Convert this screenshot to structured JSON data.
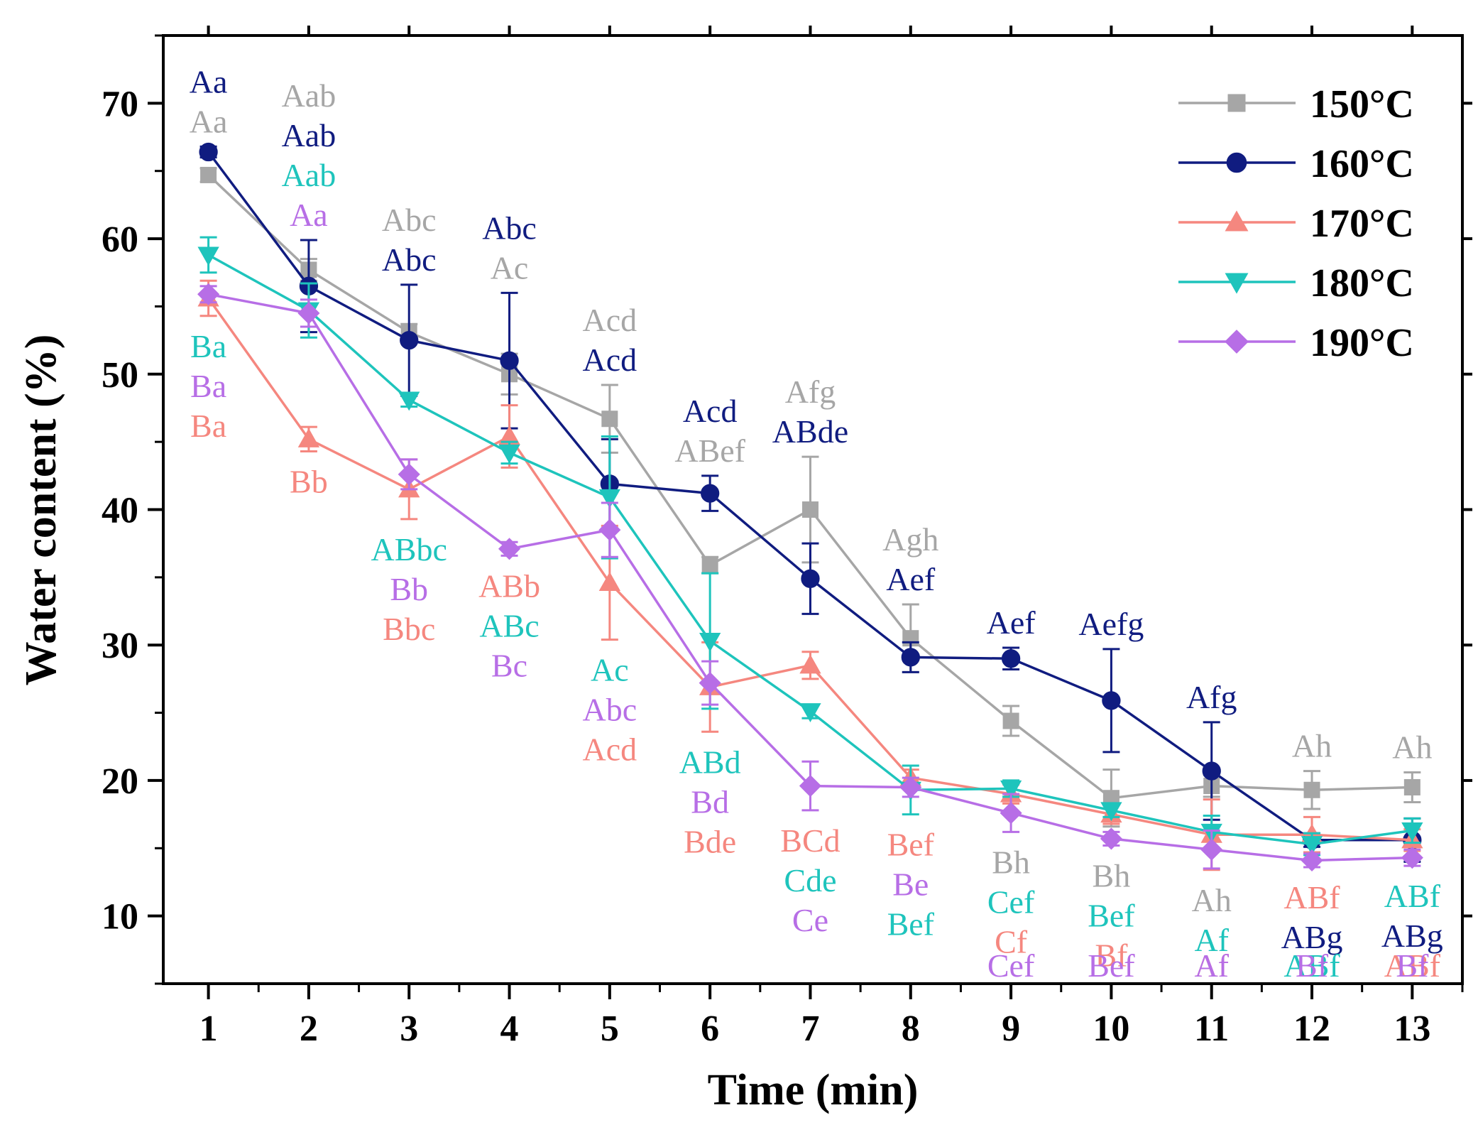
{
  "chart_data": {
    "type": "line",
    "title": "",
    "xlabel": "Time (min)",
    "ylabel": "Water content (%)",
    "xlim": [
      0.55,
      13.5
    ],
    "ylim": [
      5,
      75
    ],
    "x": [
      1,
      2,
      3,
      4,
      5,
      6,
      7,
      8,
      9,
      10,
      11,
      12,
      13
    ],
    "y_ticks": [
      10,
      20,
      30,
      40,
      50,
      60,
      70
    ],
    "legend_position": "top-right",
    "series": [
      {
        "name": "150°C",
        "color": "#a6a6a6",
        "marker": "square",
        "values": [
          64.7,
          57.7,
          53.1,
          50.0,
          46.7,
          35.9,
          40.0,
          30.5,
          24.4,
          18.7,
          19.6,
          19.3,
          19.5
        ],
        "errors": [
          0.5,
          0.8,
          0.6,
          1.5,
          2.5,
          0.6,
          3.9,
          2.5,
          1.1,
          2.1,
          0.8,
          1.4,
          1.1
        ],
        "letters": [
          "Aa",
          "Aab",
          "Abc",
          "Ac",
          "Acd",
          "ABef",
          "Afg",
          "Agh",
          "Bh",
          "Bh",
          "Ah",
          "Ah",
          "Ah"
        ]
      },
      {
        "name": "160°C",
        "color": "#101c80",
        "marker": "circle",
        "values": [
          66.4,
          56.5,
          52.5,
          51.0,
          41.9,
          41.2,
          34.9,
          29.1,
          29.0,
          25.9,
          20.7,
          15.6,
          15.6
        ],
        "errors": [
          0.4,
          3.4,
          4.1,
          5.0,
          3.3,
          1.3,
          2.6,
          1.1,
          0.8,
          3.8,
          3.6,
          0.5,
          1.6
        ],
        "letters": [
          "Aa",
          "Aab",
          "Abc",
          "Abc",
          "Acd",
          "Acd",
          "ABde",
          "Aef",
          "Aef",
          "Aefg",
          "Afg",
          "ABg",
          "ABg"
        ]
      },
      {
        "name": "170°C",
        "color": "#f5877f",
        "marker": "triangle-up",
        "values": [
          55.6,
          45.2,
          41.5,
          45.4,
          34.6,
          26.9,
          28.5,
          20.2,
          19.0,
          17.5,
          16.0,
          16.0,
          15.6
        ],
        "errors": [
          1.3,
          0.9,
          2.2,
          2.3,
          4.2,
          3.3,
          1.0,
          0.6,
          0.7,
          0.7,
          2.6,
          1.3,
          0.8
        ],
        "letters": [
          "Ba",
          "Bb",
          "Bbc",
          "ABb",
          "Acd",
          "Bde",
          "BCd",
          "Bef",
          "Cf",
          "Bf",
          "Af",
          "ABf",
          "ABf"
        ]
      },
      {
        "name": "180°C",
        "color": "#1ec4bc",
        "marker": "triangle-down",
        "values": [
          58.8,
          54.7,
          48.1,
          44.2,
          40.9,
          30.3,
          25.1,
          19.3,
          19.4,
          17.8,
          16.2,
          15.3,
          16.3
        ],
        "errors": [
          1.3,
          2.0,
          0.5,
          0.8,
          4.5,
          5.0,
          0.5,
          1.8,
          0.6,
          0.5,
          1.2,
          0.8,
          0.9
        ],
        "letters": [
          "Ba",
          "Aab",
          "ABbc",
          "ABc",
          "Ac",
          "ABd",
          "Cde",
          "Bef",
          "Cef",
          "Bef",
          "Af",
          "ABf",
          "ABf"
        ]
      },
      {
        "name": "190°C",
        "color": "#b76ee6",
        "marker": "diamond",
        "values": [
          55.9,
          54.5,
          42.6,
          37.1,
          38.5,
          27.2,
          19.6,
          19.5,
          17.6,
          15.7,
          14.9,
          14.1,
          14.3
        ],
        "errors": [
          0.6,
          1.0,
          1.1,
          0.5,
          2.0,
          1.6,
          1.8,
          0.7,
          1.4,
          0.5,
          1.4,
          0.5,
          0.6
        ],
        "letters": [
          "Ba",
          "Aa",
          "Bb",
          "Bc",
          "Abc",
          "Bd",
          "Ce",
          "Be",
          "Cef",
          "Bef",
          "Af",
          "Bf",
          "Bf"
        ]
      }
    ]
  }
}
